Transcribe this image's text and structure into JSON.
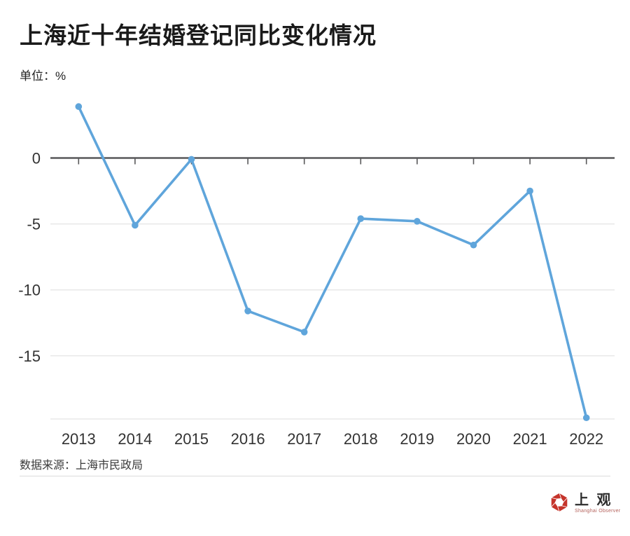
{
  "title": "上海近十年结婚登记同比变化情况",
  "unit_label": "单位：%",
  "source_note": "数据来源：上海市民政局",
  "logo": {
    "cn": "上 观",
    "en": "Shanghai Observer"
  },
  "colors": {
    "line": "#5fa5db",
    "point": "#5fa5db",
    "zero_axis": "#58585a",
    "grid": "#e8e8e8",
    "tick_label": "#333333",
    "logo_red": "#c5342b"
  },
  "chart_data": {
    "type": "line",
    "title": "上海近十年结婚登记同比变化情况",
    "unit": "%",
    "x": [
      "2013",
      "2014",
      "2015",
      "2016",
      "2017",
      "2018",
      "2019",
      "2020",
      "2021",
      "2022"
    ],
    "series": [
      {
        "name": "结婚登记同比变化",
        "values": [
          3.9,
          -5.1,
          -0.1,
          -11.6,
          -13.2,
          -4.6,
          -4.8,
          -6.6,
          -2.5,
          -19.7
        ]
      }
    ],
    "xlabel": "",
    "ylabel": "%",
    "yticks": [
      0,
      -5,
      -10,
      -15
    ],
    "ylim": [
      -19.8,
      4.6
    ],
    "grid": "horizontal",
    "legend": "none"
  }
}
